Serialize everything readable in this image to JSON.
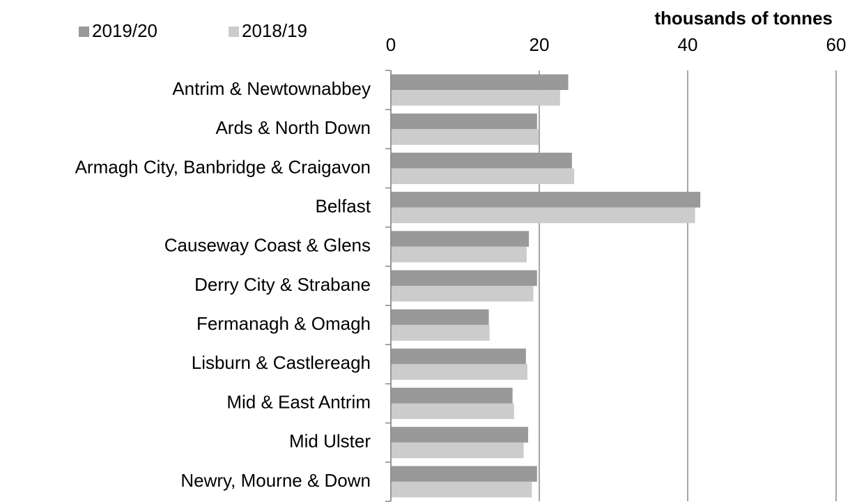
{
  "chart_data": {
    "type": "hbar",
    "axis_title": "thousands of tonnes",
    "categories": [
      "Antrim & Newtownabbey",
      "Ards & North Down",
      "Armagh City, Banbridge & Craigavon",
      "Belfast",
      "Causeway Coast & Glens",
      "Derry City & Strabane",
      "Fermanagh & Omagh",
      "Lisburn & Castlereagh",
      "Mid & East Antrim",
      "Mid Ulster",
      "Newry, Mourne & Down"
    ],
    "series": [
      {
        "name": "2019/20",
        "color": "#999999",
        "values": [
          23.9,
          19.7,
          24.4,
          41.7,
          18.6,
          19.7,
          13.2,
          18.2,
          16.4,
          18.5,
          19.7
        ]
      },
      {
        "name": "2018/19",
        "color": "#cccccc",
        "values": [
          22.8,
          19.9,
          24.7,
          41.0,
          18.3,
          19.2,
          13.3,
          18.4,
          16.6,
          17.9,
          19.0
        ]
      }
    ],
    "xlim": [
      0,
      60
    ],
    "xticks": [
      0,
      20,
      40,
      60
    ],
    "grid": true,
    "legend": "top-left"
  }
}
